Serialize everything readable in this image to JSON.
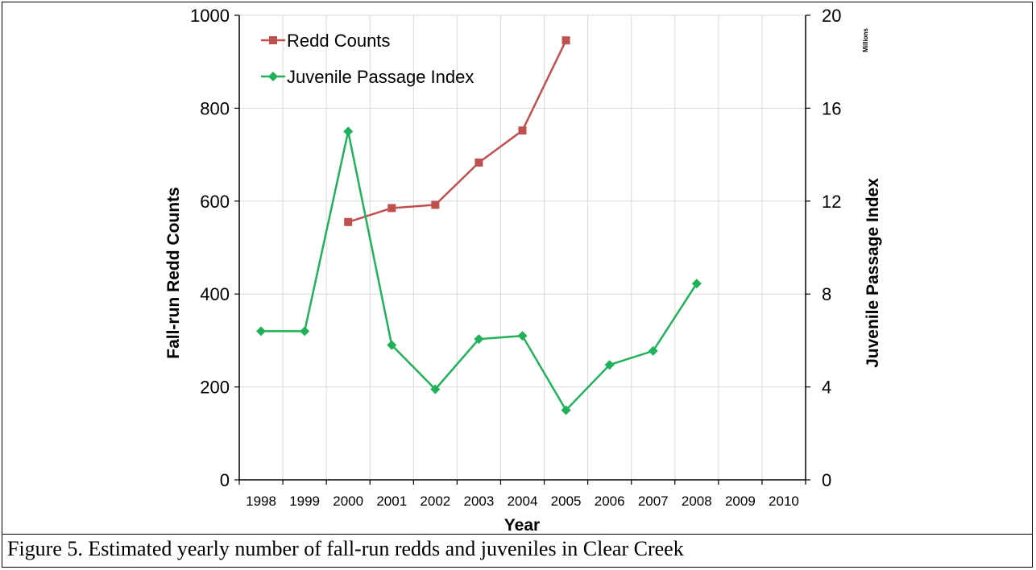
{
  "caption": "Figure 5. Estimated yearly number of fall-run redds and juveniles in Clear Creek",
  "chart_data": {
    "type": "line",
    "title": "",
    "xlabel": "Year",
    "ylabel": "Fall-run Redd Counts",
    "y2label": "Juvenile Passage Index",
    "y2unit": "Millions",
    "categories": [
      "1998",
      "1999",
      "2000",
      "2001",
      "2002",
      "2003",
      "2004",
      "2005",
      "2006",
      "2007",
      "2008",
      "2009",
      "2010"
    ],
    "ylim": [
      0,
      1000
    ],
    "y2lim": [
      0,
      20
    ],
    "yticks": [
      0,
      200,
      400,
      600,
      800,
      1000
    ],
    "y2ticks": [
      0,
      4,
      8,
      12,
      16,
      20
    ],
    "grid": true,
    "legend": "top-left",
    "series": [
      {
        "name": "Redd Counts",
        "axis": "left",
        "color": "#c0504d",
        "marker": "square",
        "values": [
          null,
          null,
          555,
          585,
          592,
          683,
          752,
          946,
          null,
          null,
          null,
          null,
          null
        ]
      },
      {
        "name": "Juvenile Passage Index",
        "axis": "right",
        "color": "#1fb25a",
        "marker": "diamond",
        "values": [
          6.4,
          6.4,
          15.0,
          5.8,
          3.9,
          6.06,
          6.2,
          3.0,
          4.95,
          5.55,
          8.45,
          null,
          null
        ]
      }
    ]
  }
}
